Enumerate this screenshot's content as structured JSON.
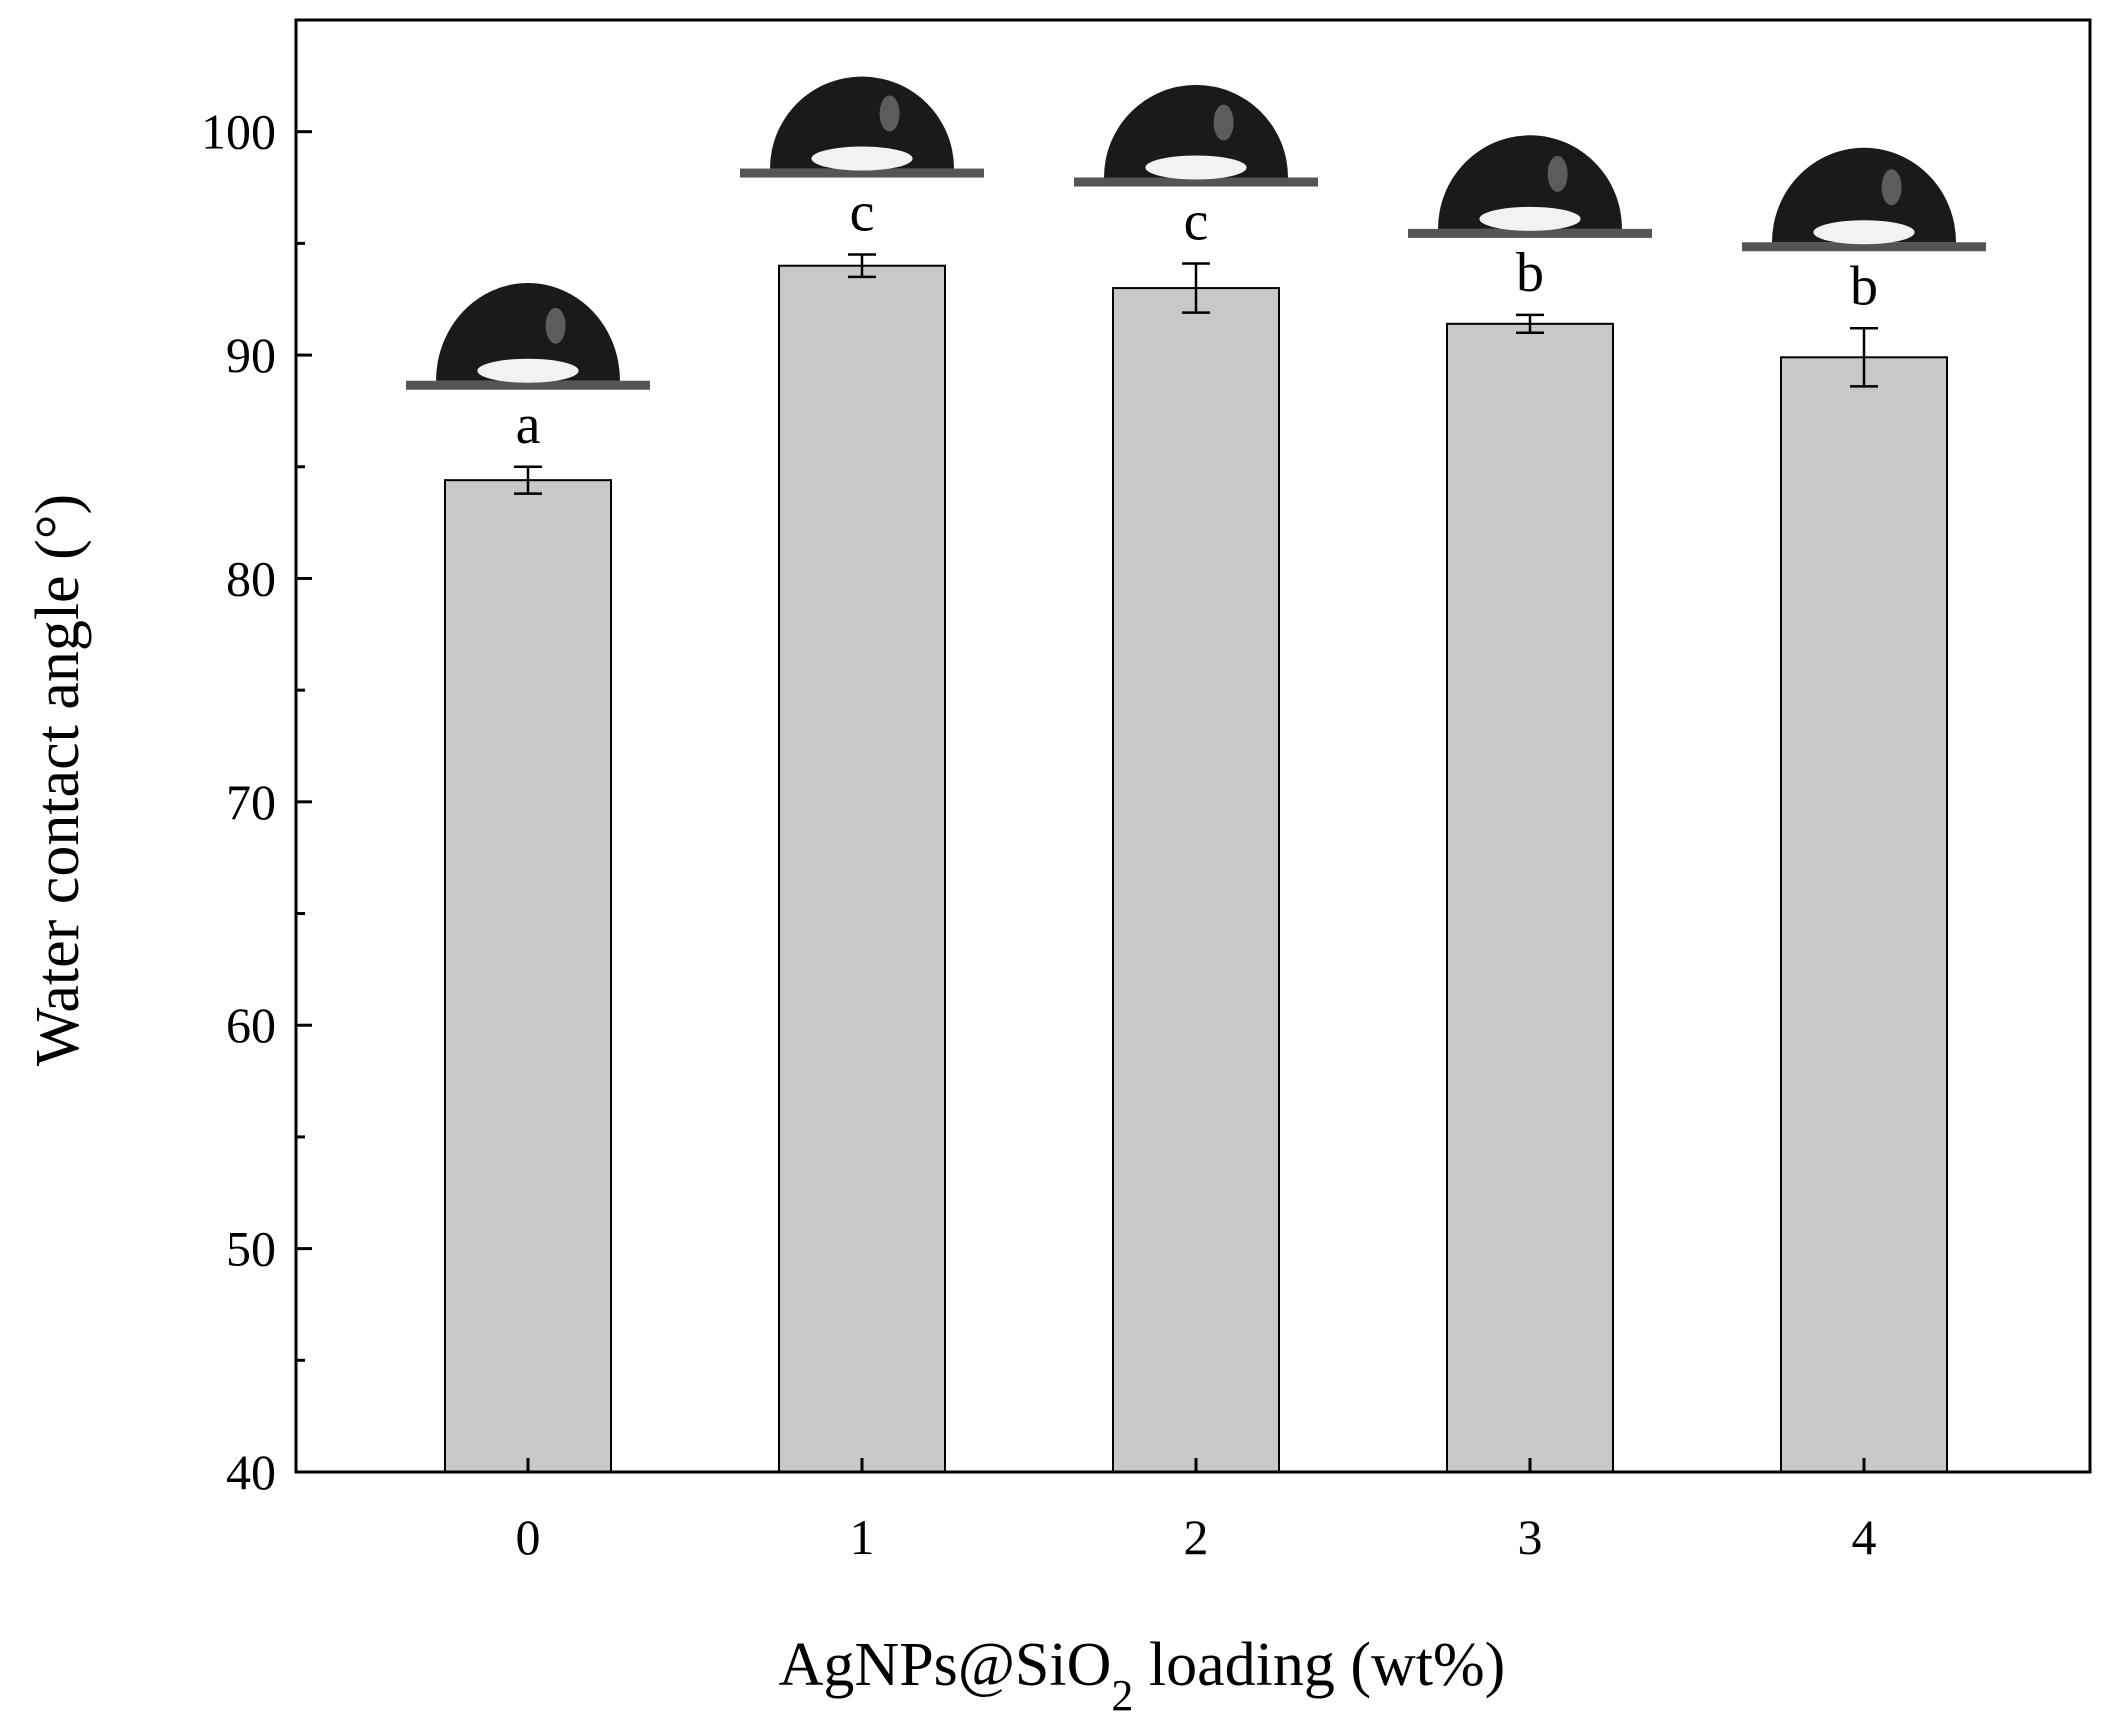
{
  "chart_data": {
    "type": "bar",
    "categories": [
      "0",
      "1",
      "2",
      "3",
      "4"
    ],
    "values": [
      84.4,
      94.0,
      93.0,
      91.4,
      89.9
    ],
    "errors": [
      0.6,
      0.5,
      1.1,
      0.4,
      1.3
    ],
    "significance_letters": [
      "a",
      "c",
      "c",
      "b",
      "b"
    ],
    "ylabel": "Water contact angle (°)",
    "xlabel_main": "AgNPs@SiO",
    "xlabel_sub": "2",
    "xlabel_rest": " loading (wt%)",
    "ylim": [
      40,
      105
    ],
    "yticks": [
      "40",
      "50",
      "60",
      "70",
      "80",
      "90",
      "100"
    ],
    "grid": false,
    "bar_color": "#c8c8c8",
    "inset_images": "water droplet photographs above each bar"
  }
}
